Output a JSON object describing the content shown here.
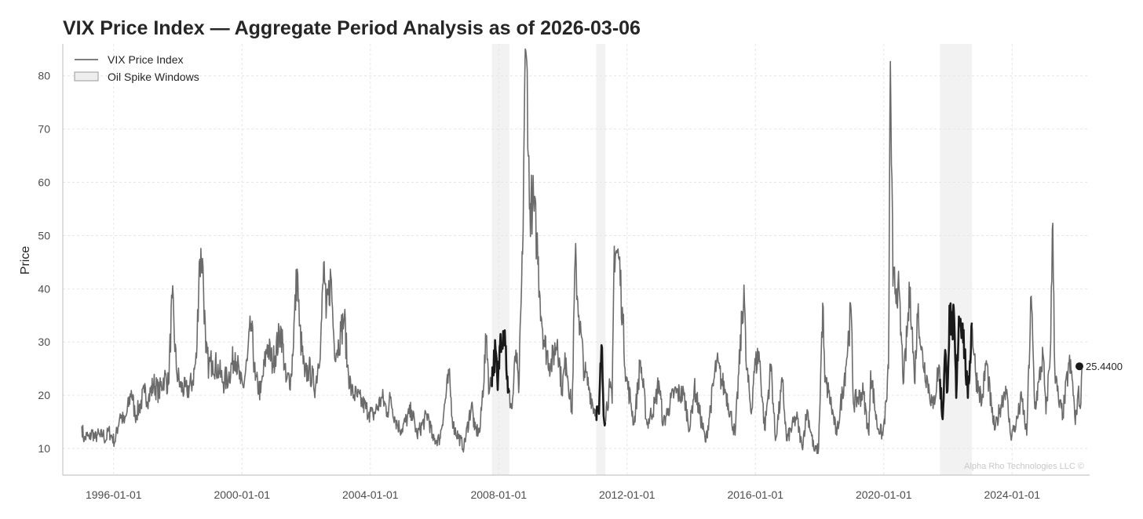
{
  "chart_data": {
    "type": "line",
    "title": "VIX Price Index — Aggregate Period Analysis as of 2026-03-06",
    "xlabel": "",
    "ylabel": "Price",
    "x_range": [
      "1994-06-01",
      "2026-06-01"
    ],
    "ylim": [
      5,
      86
    ],
    "grid": true,
    "legend_placement": "top-left",
    "x_ticks": [
      "1996-01-01",
      "2000-01-01",
      "2004-01-01",
      "2008-01-01",
      "2012-01-01",
      "2016-01-01",
      "2020-01-01",
      "2024-01-01"
    ],
    "y_ticks": [
      10,
      20,
      30,
      40,
      50,
      60,
      70,
      80
    ],
    "legend": [
      {
        "label": "VIX Price Index",
        "symbol": "line"
      },
      {
        "label": "Oil Spike Windows",
        "symbol": "patch"
      }
    ],
    "shaded_windows": [
      {
        "start": "2007-10-15",
        "end": "2008-05-01"
      },
      {
        "start": "2011-01-15",
        "end": "2011-05-01"
      },
      {
        "start": "2021-10-01",
        "end": "2022-10-01"
      }
    ],
    "series": [
      {
        "name": "VIX Price Index",
        "color": "#6b6b6b",
        "points": [
          [
            "1995-01-03",
            14.2
          ],
          [
            "1995-02-01",
            11.5
          ],
          [
            "1995-03-01",
            12.5
          ],
          [
            "1995-04-01",
            11.8
          ],
          [
            "1995-05-01",
            13.2
          ],
          [
            "1995-06-01",
            11.9
          ],
          [
            "1995-07-01",
            12.6
          ],
          [
            "1995-08-01",
            12.2
          ],
          [
            "1995-09-01",
            12.8
          ],
          [
            "1995-10-01",
            11.4
          ],
          [
            "1995-11-01",
            13.4
          ],
          [
            "1995-12-01",
            12.5
          ],
          [
            "1996-01-15",
            11.2
          ],
          [
            "1996-03-15",
            16.5
          ],
          [
            "1996-05-01",
            14.8
          ],
          [
            "1996-06-01",
            16.8
          ],
          [
            "1996-07-20",
            20.9
          ],
          [
            "1996-09-01",
            16.2
          ],
          [
            "1996-10-15",
            17.5
          ],
          [
            "1996-12-15",
            20.5
          ],
          [
            "1997-02-01",
            19.5
          ],
          [
            "1997-04-01",
            22.2
          ],
          [
            "1997-06-01",
            20.5
          ],
          [
            "1997-08-01",
            23.5
          ],
          [
            "1997-09-15",
            22.0
          ],
          [
            "1997-10-28",
            38.3
          ],
          [
            "1997-12-15",
            24.8
          ],
          [
            "1998-02-01",
            21.5
          ],
          [
            "1998-04-15",
            20.8
          ],
          [
            "1998-06-15",
            22.5
          ],
          [
            "1998-08-01",
            27.0
          ],
          [
            "1998-09-01",
            45.0
          ],
          [
            "1998-10-08",
            45.7
          ],
          [
            "1998-11-15",
            28.0
          ],
          [
            "1998-12-20",
            25.5
          ],
          [
            "1999-02-01",
            26.5
          ],
          [
            "1999-04-15",
            24.5
          ],
          [
            "1999-06-01",
            22.5
          ],
          [
            "1999-08-01",
            23.5
          ],
          [
            "1999-10-15",
            28.0
          ],
          [
            "1999-12-15",
            22.2
          ],
          [
            "2000-01-15",
            21.5
          ],
          [
            "2000-03-01",
            26.5
          ],
          [
            "2000-04-14",
            33.5
          ],
          [
            "2000-06-01",
            22.8
          ],
          [
            "2000-08-01",
            20.5
          ],
          [
            "2000-10-15",
            29.5
          ],
          [
            "2000-12-15",
            26.0
          ],
          [
            "2001-03-22",
            32.5
          ],
          [
            "2001-05-15",
            22.5
          ],
          [
            "2001-07-15",
            23.5
          ],
          [
            "2001-09-20",
            43.7
          ],
          [
            "2001-10-15",
            33.0
          ],
          [
            "2001-12-15",
            23.5
          ],
          [
            "2002-02-01",
            25.0
          ],
          [
            "2002-04-15",
            21.5
          ],
          [
            "2002-06-15",
            30.5
          ],
          [
            "2002-07-24",
            45.1
          ],
          [
            "2002-08-15",
            34.5
          ],
          [
            "2002-10-08",
            42.5
          ],
          [
            "2002-11-15",
            29.5
          ],
          [
            "2002-12-20",
            28.5
          ],
          [
            "2003-02-01",
            32.0
          ],
          [
            "2003-03-11",
            34.7
          ],
          [
            "2003-04-15",
            25.5
          ],
          [
            "2003-06-01",
            20.5
          ],
          [
            "2003-08-01",
            19.8
          ],
          [
            "2003-10-01",
            18.5
          ],
          [
            "2003-12-15",
            16.8
          ],
          [
            "2004-02-01",
            16.2
          ],
          [
            "2004-05-15",
            19.5
          ],
          [
            "2004-07-15",
            16.8
          ],
          [
            "2004-08-15",
            19.5
          ],
          [
            "2004-10-15",
            15.2
          ],
          [
            "2004-12-15",
            13.5
          ],
          [
            "2005-04-15",
            17.2
          ],
          [
            "2005-06-15",
            12.5
          ],
          [
            "2005-10-15",
            16.5
          ],
          [
            "2005-12-15",
            11.5
          ],
          [
            "2006-03-01",
            11.8
          ],
          [
            "2006-06-14",
            23.8
          ],
          [
            "2006-08-01",
            14.2
          ],
          [
            "2006-12-01",
            10.2
          ],
          [
            "2007-02-27",
            18.5
          ],
          [
            "2007-04-01",
            13.5
          ],
          [
            "2007-06-01",
            13.2
          ],
          [
            "2007-08-16",
            31.2
          ],
          [
            "2007-09-15",
            20.5
          ],
          [
            "2007-11-26",
            28.5
          ],
          [
            "2007-12-20",
            21.0
          ],
          [
            "2008-01-22",
            31.5
          ],
          [
            "2008-03-10",
            32.2
          ],
          [
            "2008-04-15",
            20.5
          ],
          [
            "2008-06-01",
            17.5
          ],
          [
            "2008-07-15",
            28.5
          ],
          [
            "2008-08-15",
            20.5
          ],
          [
            "2008-09-29",
            46.5
          ],
          [
            "2008-10-24",
            80.1
          ],
          [
            "2008-11-20",
            80.9
          ],
          [
            "2008-12-15",
            55.0
          ],
          [
            "2009-01-20",
            56.6
          ],
          [
            "2009-03-09",
            49.7
          ],
          [
            "2009-04-15",
            38.5
          ],
          [
            "2009-06-01",
            30.0
          ],
          [
            "2009-08-15",
            25.5
          ],
          [
            "2009-10-30",
            30.5
          ],
          [
            "2009-12-20",
            21.0
          ],
          [
            "2010-02-05",
            27.0
          ],
          [
            "2010-04-15",
            16.5
          ],
          [
            "2010-05-20",
            45.8
          ],
          [
            "2010-07-01",
            35.0
          ],
          [
            "2010-09-01",
            24.5
          ],
          [
            "2010-11-01",
            21.0
          ],
          [
            "2010-12-20",
            17.5
          ],
          [
            "2011-02-15",
            16.5
          ],
          [
            "2011-03-16",
            29.4
          ],
          [
            "2011-04-15",
            15.2
          ],
          [
            "2011-06-20",
            21.5
          ],
          [
            "2011-07-15",
            18.5
          ],
          [
            "2011-08-08",
            48.0
          ],
          [
            "2011-10-03",
            45.5
          ],
          [
            "2011-11-15",
            33.5
          ],
          [
            "2011-12-20",
            23.5
          ],
          [
            "2012-02-15",
            18.5
          ],
          [
            "2012-03-20",
            14.5
          ],
          [
            "2012-06-01",
            26.5
          ],
          [
            "2012-08-15",
            14.5
          ],
          [
            "2012-11-15",
            18.5
          ],
          [
            "2012-12-28",
            22.7
          ],
          [
            "2013-02-15",
            14.5
          ],
          [
            "2013-04-15",
            17.5
          ],
          [
            "2013-06-20",
            20.5
          ],
          [
            "2013-10-10",
            20.0
          ],
          [
            "2013-12-15",
            13.5
          ],
          [
            "2014-02-03",
            21.5
          ],
          [
            "2014-06-15",
            11.2
          ],
          [
            "2014-10-15",
            26.2
          ],
          [
            "2014-12-15",
            22.5
          ],
          [
            "2015-02-01",
            20.5
          ],
          [
            "2015-05-15",
            12.5
          ],
          [
            "2015-08-24",
            40.7
          ],
          [
            "2015-09-15",
            26.5
          ],
          [
            "2015-11-15",
            16.5
          ],
          [
            "2015-12-15",
            24.5
          ],
          [
            "2016-02-11",
            28.1
          ],
          [
            "2016-04-15",
            13.5
          ],
          [
            "2016-06-27",
            25.8
          ],
          [
            "2016-08-15",
            11.5
          ],
          [
            "2016-11-04",
            22.5
          ],
          [
            "2016-12-20",
            11.5
          ],
          [
            "2017-04-13",
            16.0
          ],
          [
            "2017-06-15",
            10.2
          ],
          [
            "2017-08-11",
            17.3
          ],
          [
            "2017-11-01",
            9.5
          ],
          [
            "2017-12-20",
            10.0
          ],
          [
            "2018-02-05",
            37.3
          ],
          [
            "2018-03-01",
            22.5
          ],
          [
            "2018-04-15",
            20.5
          ],
          [
            "2018-07-15",
            12.5
          ],
          [
            "2018-10-24",
            25.2
          ],
          [
            "2018-12-24",
            36.1
          ],
          [
            "2019-01-20",
            18.5
          ],
          [
            "2019-05-13",
            20.5
          ],
          [
            "2019-07-15",
            12.5
          ],
          [
            "2019-08-05",
            24.6
          ],
          [
            "2019-10-15",
            14.5
          ],
          [
            "2019-12-20",
            12.5
          ],
          [
            "2020-01-31",
            18.8
          ],
          [
            "2020-02-24",
            25.0
          ],
          [
            "2020-03-16",
            82.7
          ],
          [
            "2020-04-15",
            40.5
          ],
          [
            "2020-06-11",
            40.8
          ],
          [
            "2020-08-15",
            22.5
          ],
          [
            "2020-10-28",
            40.3
          ],
          [
            "2020-12-15",
            22.5
          ],
          [
            "2021-01-27",
            37.2
          ],
          [
            "2021-03-01",
            28.5
          ],
          [
            "2021-05-15",
            22.5
          ],
          [
            "2021-07-15",
            17.5
          ],
          [
            "2021-09-20",
            25.7
          ],
          [
            "2021-11-01",
            15.5
          ],
          [
            "2021-11-30",
            28.5
          ],
          [
            "2021-12-20",
            20.5
          ],
          [
            "2022-01-24",
            36.5
          ],
          [
            "2022-02-24",
            30.5
          ],
          [
            "2022-03-07",
            36.4
          ],
          [
            "2022-04-05",
            19.5
          ],
          [
            "2022-05-05",
            34.8
          ],
          [
            "2022-06-16",
            33.5
          ],
          [
            "2022-08-15",
            19.5
          ],
          [
            "2022-09-30",
            33.6
          ],
          [
            "2022-11-15",
            23.5
          ],
          [
            "2022-12-20",
            21.5
          ],
          [
            "2023-01-20",
            18.5
          ],
          [
            "2023-03-13",
            26.5
          ],
          [
            "2023-05-15",
            16.8
          ],
          [
            "2023-06-20",
            13.5
          ],
          [
            "2023-08-15",
            17.5
          ],
          [
            "2023-10-20",
            21.7
          ],
          [
            "2023-12-15",
            12.5
          ],
          [
            "2024-02-15",
            14.5
          ],
          [
            "2024-04-19",
            19.5
          ],
          [
            "2024-06-15",
            12.5
          ],
          [
            "2024-08-05",
            38.6
          ],
          [
            "2024-09-15",
            17.5
          ],
          [
            "2024-11-01",
            22.5
          ],
          [
            "2024-12-18",
            27.6
          ],
          [
            "2025-01-20",
            16.5
          ],
          [
            "2025-03-10",
            27.9
          ],
          [
            "2025-04-08",
            52.3
          ],
          [
            "2025-05-01",
            24.5
          ],
          [
            "2025-06-15",
            18.5
          ],
          [
            "2025-08-01",
            16.5
          ],
          [
            "2025-10-10",
            26.0
          ],
          [
            "2025-11-20",
            22.5
          ],
          [
            "2025-12-20",
            14.5
          ],
          [
            "2026-01-20",
            20.5
          ],
          [
            "2026-02-15",
            17.5
          ],
          [
            "2026-03-06",
            25.44
          ]
        ]
      }
    ],
    "last_value": {
      "date": "2026-03-06",
      "value": 25.44,
      "label": "25.4400"
    },
    "watermark": "Alpha Rho Technologies LLC ©",
    "colors": {
      "line": "#6b6b6b",
      "highlight": "#1a1a1a",
      "window": "#f2f2f2",
      "grid": "#e6e6e6",
      "axis": "#c8c8c8"
    }
  }
}
